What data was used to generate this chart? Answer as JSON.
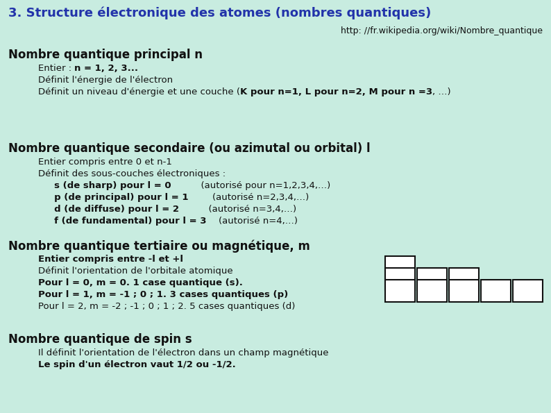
{
  "bg_color": "#c8ece0",
  "title": "3. Structure électronique des atomes (nombres quantiques)",
  "title_color": "#2233aa",
  "url": "http: //fr.wikipedia.org/wiki/Nombre_quantique",
  "sections": [
    {
      "header": "Nombre quantique principal n",
      "lines": [
        [
          {
            "t": "Entier : ",
            "b": false
          },
          {
            "t": "n = 1, 2, 3...",
            "b": true
          }
        ],
        [
          {
            "t": "Définit l'énergie de l'électron",
            "b": false
          }
        ],
        [
          {
            "t": "Définit un niveau d'énergie et une couche (",
            "b": false
          },
          {
            "t": "K pour n=1, L pour n=2, M pour n =3",
            "b": true
          },
          {
            "t": ", …)",
            "b": false
          }
        ]
      ]
    },
    {
      "header": "Nombre quantique secondaire (ou azimutal ou orbital) l",
      "lines": [
        [
          {
            "t": "Entier compris entre 0 et n-1",
            "b": false
          }
        ],
        [
          {
            "t": "Définit des sous-couches électroniques :",
            "b": false
          }
        ],
        [
          {
            "t": "     s (de sharp) pour l = 0",
            "b": true
          },
          {
            "t": "          (autorisé pour n=1,2,3,4,…)",
            "b": false
          }
        ],
        [
          {
            "t": "     p (de principal) pour l = 1",
            "b": true
          },
          {
            "t": "        (autorisé n=2,3,4,…)",
            "b": false
          }
        ],
        [
          {
            "t": "     d (de diffuse) pour l = 2",
            "b": true
          },
          {
            "t": "          (autorisé n=3,4,…)",
            "b": false
          }
        ],
        [
          {
            "t": "     f (de fundamental) pour l = 3",
            "b": true
          },
          {
            "t": "    (autorisé n=4,…)",
            "b": false
          }
        ]
      ]
    },
    {
      "header": "Nombre quantique tertiaire ou magnétique, m",
      "lines": [
        [
          {
            "t": "Entier compris entre -l et +l",
            "b": true
          }
        ],
        [
          {
            "t": "Définit l'orientation de l'orbitale atomique",
            "b": false
          }
        ],
        [
          {
            "t": "Pour l = 0, m = 0. 1 case quantique (s).",
            "b": true
          }
        ],
        [
          {
            "t": "Pour l = 1, m = -1 ; 0 ; 1. 3 cases quantiques (p)",
            "b": true
          }
        ],
        [
          {
            "t": "Pour l = 2, m = -2 ; -1 ; 0 ; 1 ; 2. 5 cases quantiques (d)",
            "b": false
          }
        ]
      ]
    },
    {
      "header": "Nombre quantique de spin s",
      "lines": [
        [
          {
            "t": "Il définit l'orientation de l'électron dans un champ magnétique",
            "b": false
          }
        ],
        [
          {
            "t": "Le spin d'un électron vaut 1/2 ou -1/2.",
            "b": true
          }
        ]
      ]
    }
  ],
  "box_color": "#ffffff",
  "box_edge_color": "#111111",
  "title_fs": 13,
  "header_fs": 12,
  "body_fs": 9.5,
  "url_fs": 9
}
